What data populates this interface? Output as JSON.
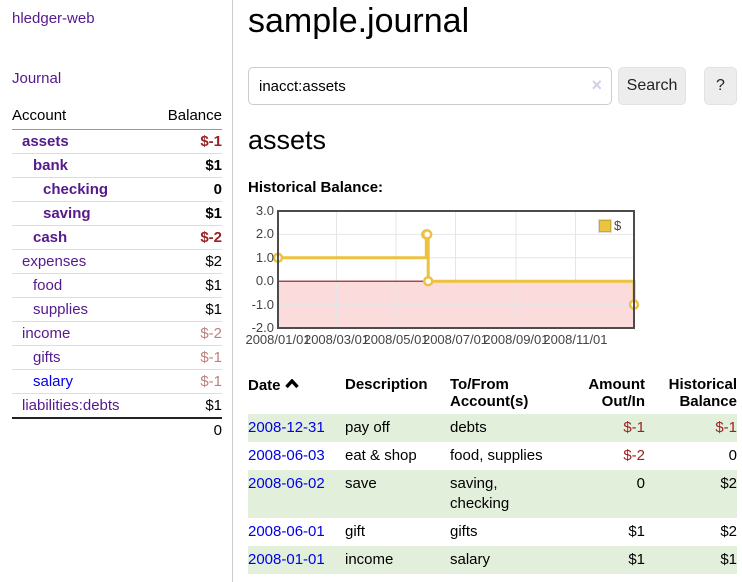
{
  "app": {
    "brand": "hledger-web"
  },
  "sidebar": {
    "journal_link": "Journal",
    "accounts_table": {
      "col_account": "Account",
      "col_balance": "Balance",
      "rows": [
        {
          "name": "assets",
          "depth": 1,
          "strong": true,
          "link": "purple",
          "balance": "$-1",
          "balance_class": "neg"
        },
        {
          "name": "bank",
          "depth": 2,
          "strong": true,
          "link": "purple",
          "balance": "$1",
          "balance_class": ""
        },
        {
          "name": "checking",
          "depth": 3,
          "strong": true,
          "link": "purple",
          "balance": "0",
          "balance_class": ""
        },
        {
          "name": "saving",
          "depth": 3,
          "strong": true,
          "link": "purple",
          "balance": "$1",
          "balance_class": ""
        },
        {
          "name": "cash",
          "depth": 2,
          "strong": true,
          "link": "purple",
          "balance": "$-2",
          "balance_class": "neg"
        },
        {
          "name": "expenses",
          "depth": 1,
          "strong": false,
          "link": "purple",
          "balance": "$2",
          "balance_class": ""
        },
        {
          "name": "food",
          "depth": 2,
          "strong": false,
          "link": "purple",
          "balance": "$1",
          "balance_class": ""
        },
        {
          "name": "supplies",
          "depth": 2,
          "strong": false,
          "link": "purple",
          "balance": "$1",
          "balance_class": ""
        },
        {
          "name": "income",
          "depth": 1,
          "strong": false,
          "link": "purple",
          "balance": "$-2",
          "balance_class": "negmuted"
        },
        {
          "name": "gifts",
          "depth": 2,
          "strong": false,
          "link": "purple",
          "balance": "$-1",
          "balance_class": "negmuted"
        },
        {
          "name": "salary",
          "depth": 2,
          "strong": false,
          "link": "blue",
          "balance": "$-1",
          "balance_class": "negmuted"
        },
        {
          "name": "liabilities:debts",
          "depth": 1,
          "strong": false,
          "link": "purple",
          "balance": "$1",
          "balance_class": ""
        }
      ],
      "total": "0"
    }
  },
  "main": {
    "title": "sample.journal",
    "search": {
      "value": "inacct:assets",
      "clear_icon": "×",
      "button": "Search",
      "help": "?"
    },
    "account_heading": "assets",
    "chart_heading": "Historical Balance:"
  },
  "chart_data": {
    "type": "line",
    "steps": true,
    "title": "Historical Balance",
    "series": [
      {
        "name": "$",
        "color": "#edc240",
        "points": [
          [
            "2008-01-01",
            1
          ],
          [
            "2008-06-01",
            2
          ],
          [
            "2008-06-02",
            2
          ],
          [
            "2008-06-03",
            0
          ],
          [
            "2008-12-31",
            -1
          ]
        ]
      }
    ],
    "xlim": [
      "2008-01-01",
      "2008-12-31"
    ],
    "ylim": [
      -2,
      3
    ],
    "y_ticks": [
      {
        "label": "3.0",
        "value": 3
      },
      {
        "label": "2.0",
        "value": 2
      },
      {
        "label": "1.0",
        "value": 1
      },
      {
        "label": "0.0",
        "value": 0
      },
      {
        "label": "-1.0",
        "value": -1
      },
      {
        "label": "-2.0",
        "value": -2
      }
    ],
    "x_ticks": [
      {
        "label": "2008/01/01",
        "date": "2008-01-01"
      },
      {
        "label": "2008/03/01",
        "date": "2008-03-01"
      },
      {
        "label": "2008/05/01",
        "date": "2008-05-01"
      },
      {
        "label": "2008/07/01",
        "date": "2008-07-01"
      },
      {
        "label": "2008/09/01",
        "date": "2008-09-01"
      },
      {
        "label": "2008/11/01",
        "date": "2008-11-01"
      }
    ],
    "legend": {
      "label": "$",
      "position": "top-right"
    },
    "grid": true,
    "negative_region_color": "#fbdbdb",
    "zero_line_color": "#8b1717",
    "border_color": "#4c4c4c"
  },
  "register": {
    "headers": {
      "date": "Date",
      "description": "Description",
      "accounts": "To/From Account(s)",
      "amount": "Amount Out/In",
      "balance": "Historical Balance"
    },
    "rows": [
      {
        "date": "2008-12-31",
        "description": "pay off",
        "accounts": "debts",
        "amount": "$-1",
        "amount_neg": true,
        "balance": "$-1",
        "balance_neg": true
      },
      {
        "date": "2008-06-03",
        "description": "eat & shop",
        "accounts": "food, supplies",
        "amount": "$-2",
        "amount_neg": true,
        "balance": "0",
        "balance_neg": false
      },
      {
        "date": "2008-06-02",
        "description": "save",
        "accounts": "saving, checking",
        "amount": "0",
        "amount_neg": false,
        "balance": "$2",
        "balance_neg": false
      },
      {
        "date": "2008-06-01",
        "description": "gift",
        "accounts": "gifts",
        "amount": "$1",
        "amount_neg": false,
        "balance": "$2",
        "balance_neg": false
      },
      {
        "date": "2008-01-01",
        "description": "income",
        "accounts": "salary",
        "amount": "$1",
        "amount_neg": false,
        "balance": "$1",
        "balance_neg": false
      }
    ]
  }
}
